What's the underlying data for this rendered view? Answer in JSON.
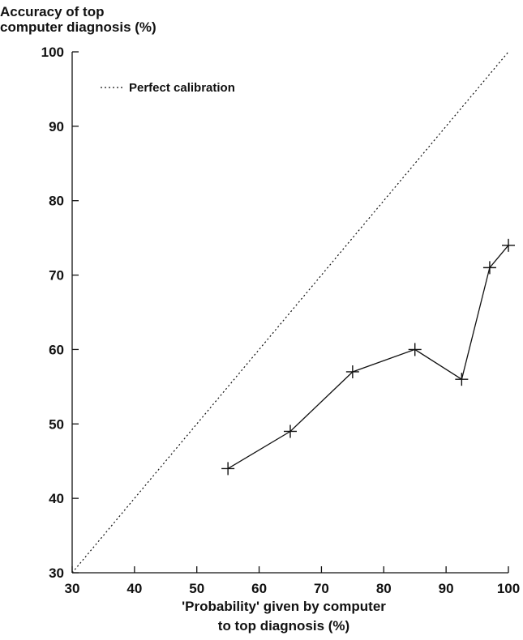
{
  "chart_data": {
    "type": "line",
    "ylabel_lines": [
      "Accuracy of top",
      "computer diagnosis (%)"
    ],
    "xlabel_lines": [
      "'Probability' given by computer",
      "to top diagnosis (%)"
    ],
    "xlim": [
      30,
      100
    ],
    "ylim": [
      30,
      100
    ],
    "x_ticks": [
      30,
      40,
      50,
      60,
      70,
      80,
      90,
      100
    ],
    "y_ticks": [
      30,
      40,
      50,
      60,
      70,
      80,
      90,
      100
    ],
    "grid": false,
    "legend_position": "top-left",
    "series": [
      {
        "name": "",
        "style": "solid",
        "marker": "plus",
        "points": [
          {
            "x": 55,
            "y": 44
          },
          {
            "x": 65,
            "y": 49
          },
          {
            "x": 75,
            "y": 57
          },
          {
            "x": 85,
            "y": 60
          },
          {
            "x": 92.5,
            "y": 56
          },
          {
            "x": 97,
            "y": 71
          },
          {
            "x": 100,
            "y": 74
          }
        ]
      },
      {
        "name": "Perfect calibration",
        "style": "dotted",
        "marker": "none",
        "points": [
          {
            "x": 30,
            "y": 30
          },
          {
            "x": 100,
            "y": 100
          }
        ]
      }
    ],
    "legend": [
      {
        "label": "Perfect calibration",
        "style": "dotted"
      }
    ],
    "colors": {
      "ink": "#111111",
      "background": "#ffffff"
    }
  }
}
